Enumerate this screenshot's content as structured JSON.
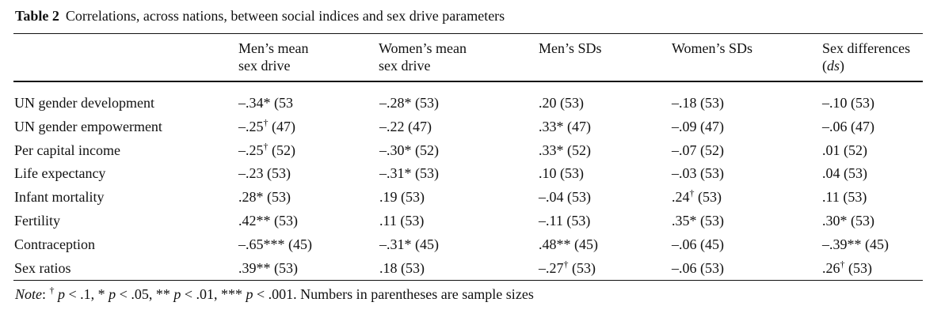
{
  "caption": {
    "label": "Table 2",
    "text": "Correlations, across nations, between social indices and sex drive parameters"
  },
  "columns": [
    {
      "line1": "",
      "line2": ""
    },
    {
      "line1": "Men’s mean",
      "line2": "sex drive"
    },
    {
      "line1": "Women’s mean",
      "line2": "sex drive"
    },
    {
      "line1": "Men’s SDs",
      "line2": ""
    },
    {
      "line1": "Women’s SDs",
      "line2": ""
    },
    {
      "line1": "Sex differences",
      "line2": "(ds)"
    }
  ],
  "rows": [
    {
      "label": "UN gender development",
      "cells": [
        {
          "pre": "–.34* (53",
          "sup": "",
          "post": ""
        },
        {
          "pre": "–.28* (53)",
          "sup": "",
          "post": ""
        },
        {
          "pre": ".20 (53)",
          "sup": "",
          "post": ""
        },
        {
          "pre": "–.18 (53)",
          "sup": "",
          "post": ""
        },
        {
          "pre": "–.10 (53)",
          "sup": "",
          "post": ""
        }
      ]
    },
    {
      "label": "UN gender empowerment",
      "cells": [
        {
          "pre": "–.25",
          "sup": "†",
          "post": " (47)"
        },
        {
          "pre": "–.22 (47)",
          "sup": "",
          "post": ""
        },
        {
          "pre": ".33* (47)",
          "sup": "",
          "post": ""
        },
        {
          "pre": "–.09 (47)",
          "sup": "",
          "post": ""
        },
        {
          "pre": "–.06 (47)",
          "sup": "",
          "post": ""
        }
      ]
    },
    {
      "label": "Per capital income",
      "cells": [
        {
          "pre": "–.25",
          "sup": "†",
          "post": " (52)"
        },
        {
          "pre": "–.30* (52)",
          "sup": "",
          "post": ""
        },
        {
          "pre": ".33* (52)",
          "sup": "",
          "post": ""
        },
        {
          "pre": "–.07 (52)",
          "sup": "",
          "post": ""
        },
        {
          "pre": ".01 (52)",
          "sup": "",
          "post": ""
        }
      ]
    },
    {
      "label": "Life expectancy",
      "cells": [
        {
          "pre": "–.23 (53)",
          "sup": "",
          "post": ""
        },
        {
          "pre": "–.31* (53)",
          "sup": "",
          "post": ""
        },
        {
          "pre": ".10 (53)",
          "sup": "",
          "post": ""
        },
        {
          "pre": "–.03 (53)",
          "sup": "",
          "post": ""
        },
        {
          "pre": ".04 (53)",
          "sup": "",
          "post": ""
        }
      ]
    },
    {
      "label": "Infant mortality",
      "cells": [
        {
          "pre": ".28* (53)",
          "sup": "",
          "post": ""
        },
        {
          "pre": ".19 (53)",
          "sup": "",
          "post": ""
        },
        {
          "pre": "–.04 (53)",
          "sup": "",
          "post": ""
        },
        {
          "pre": ".24",
          "sup": "†",
          "post": " (53)"
        },
        {
          "pre": ".11 (53)",
          "sup": "",
          "post": ""
        }
      ]
    },
    {
      "label": "Fertility",
      "cells": [
        {
          "pre": ".42** (53)",
          "sup": "",
          "post": ""
        },
        {
          "pre": ".11 (53)",
          "sup": "",
          "post": ""
        },
        {
          "pre": "–.11 (53)",
          "sup": "",
          "post": ""
        },
        {
          "pre": ".35* (53)",
          "sup": "",
          "post": ""
        },
        {
          "pre": ".30* (53)",
          "sup": "",
          "post": ""
        }
      ]
    },
    {
      "label": "Contraception",
      "cells": [
        {
          "pre": "–.65*** (45)",
          "sup": "",
          "post": ""
        },
        {
          "pre": "–.31* (45)",
          "sup": "",
          "post": ""
        },
        {
          "pre": ".48** (45)",
          "sup": "",
          "post": ""
        },
        {
          "pre": "–.06 (45)",
          "sup": "",
          "post": ""
        },
        {
          "pre": "–.39** (45)",
          "sup": "",
          "post": ""
        }
      ]
    },
    {
      "label": "Sex ratios",
      "cells": [
        {
          "pre": ".39** (53)",
          "sup": "",
          "post": ""
        },
        {
          "pre": ".18 (53)",
          "sup": "",
          "post": ""
        },
        {
          "pre": "–.27",
          "sup": "†",
          "post": " (53)"
        },
        {
          "pre": "–.06 (53)",
          "sup": "",
          "post": ""
        },
        {
          "pre": ".26",
          "sup": "†",
          "post": " (53)"
        }
      ]
    }
  ],
  "note": {
    "label": "Note",
    "text": ": † p < .1, * p < .05, ** p < .01, *** p < .001. Numbers in parentheses are sample sizes"
  }
}
